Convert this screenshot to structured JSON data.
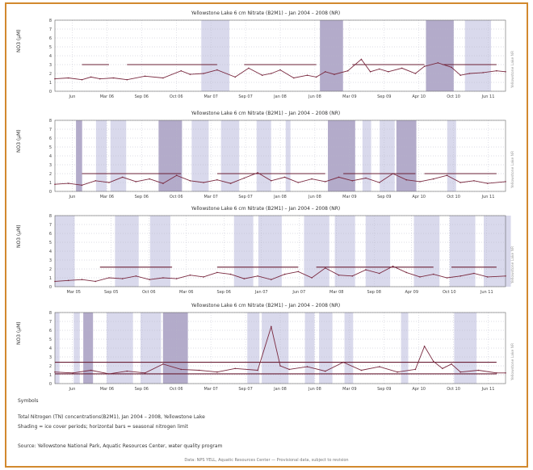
{
  "chart_data": [
    {
      "type": "line",
      "title": "Yellowstone Lake 6 cm Nitrate (B2M1) – Jan 2004 – 2008 (NR)",
      "ylabel": "NO3 (µM)",
      "ylim": [
        0,
        8
      ],
      "yticks": [
        "0",
        "1",
        "2",
        "3",
        "4",
        "5",
        "6",
        "7",
        "8"
      ],
      "xticks": [
        "Jun",
        "Mar 06",
        "Sep 06",
        "Oct 06",
        "Mar 07",
        "Sep 07",
        "Jan 08",
        "Jun 08",
        "Mar 09",
        "Sep 09",
        "Apr 10",
        "Oct 10",
        "Jun 11"
      ],
      "right_label": "Yellowstone Lake NR",
      "limit_segments": [
        [
          0.06,
          0.12,
          3.0
        ],
        [
          0.16,
          0.36,
          3.0
        ],
        [
          0.42,
          0.58,
          3.0
        ],
        [
          0.66,
          0.82,
          3.0
        ],
        [
          0.86,
          0.98,
          3.0
        ]
      ],
      "shade_color": "#c9c9e4",
      "line_color": "#7a2a40",
      "series": [
        {
          "x": [
            0,
            0.03,
            0.06,
            0.08,
            0.1,
            0.13,
            0.16,
            0.2,
            0.24,
            0.28,
            0.3,
            0.33,
            0.36,
            0.4,
            0.43,
            0.46,
            0.48,
            0.5,
            0.53,
            0.56,
            0.58,
            0.6,
            0.62,
            0.65,
            0.68,
            0.7,
            0.72,
            0.74,
            0.77,
            0.8,
            0.82,
            0.85,
            0.88,
            0.9,
            0.92,
            0.95,
            0.98,
            1.0
          ],
          "y": [
            1.4,
            1.5,
            1.3,
            1.6,
            1.4,
            1.5,
            1.3,
            1.7,
            1.5,
            2.3,
            1.9,
            2.0,
            2.4,
            1.6,
            2.6,
            1.8,
            2.0,
            2.4,
            1.5,
            1.8,
            1.6,
            2.2,
            1.9,
            2.3,
            3.6,
            2.2,
            2.5,
            2.2,
            2.6,
            2.0,
            2.8,
            3.2,
            2.7,
            1.8,
            2.0,
            2.1,
            2.3,
            2.2
          ]
        }
      ]
    },
    {
      "type": "line",
      "title": "Yellowstone Lake 6 cm Nitrate (B2M1) – Jan 2004 – 2008 (NR)",
      "ylabel": "NO3 (µM)",
      "ylim": [
        0,
        8
      ],
      "yticks": [
        "0",
        "1",
        "2",
        "3",
        "4",
        "5",
        "6",
        "7",
        "8"
      ],
      "xticks": [
        "Jun",
        "Mar 06",
        "Sep 06",
        "Oct 06",
        "Mar 07",
        "Sep 07",
        "Jan 08",
        "Jun 08",
        "Mar 09",
        "Sep 09",
        "Apr 10",
        "Oct 10",
        "Jun 11"
      ],
      "right_label": "Yellowstone Lake NR",
      "limit_segments": [
        [
          0.06,
          0.28,
          2.0
        ],
        [
          0.36,
          0.6,
          2.0
        ],
        [
          0.64,
          0.8,
          2.0
        ],
        [
          0.82,
          0.98,
          2.0
        ]
      ],
      "shade_color": "#c9c9e4",
      "line_color": "#7a2a40",
      "series": [
        {
          "x": [
            0,
            0.03,
            0.06,
            0.09,
            0.12,
            0.15,
            0.18,
            0.21,
            0.24,
            0.27,
            0.3,
            0.33,
            0.36,
            0.39,
            0.42,
            0.45,
            0.48,
            0.51,
            0.54,
            0.57,
            0.6,
            0.63,
            0.66,
            0.69,
            0.72,
            0.75,
            0.78,
            0.81,
            0.84,
            0.87,
            0.9,
            0.93,
            0.96,
            1.0
          ],
          "y": [
            0.8,
            0.9,
            0.7,
            1.2,
            1.0,
            1.6,
            1.1,
            1.4,
            0.9,
            1.8,
            1.2,
            1.0,
            1.3,
            0.9,
            1.5,
            2.1,
            1.2,
            1.6,
            1.0,
            1.4,
            1.1,
            1.6,
            1.2,
            1.5,
            1.0,
            2.0,
            1.3,
            1.1,
            1.4,
            1.8,
            1.0,
            1.2,
            0.9,
            1.1
          ]
        }
      ]
    },
    {
      "type": "line",
      "title": "Yellowstone Lake 6 cm Nitrate (B2M1) – Jan 2004 – 2008 (NR)",
      "ylabel": "NO3 (µM)",
      "ylim": [
        0,
        8
      ],
      "yticks": [
        "0",
        "1",
        "2",
        "3",
        "4",
        "5",
        "6",
        "7",
        "8"
      ],
      "xticks": [
        "Mar 05",
        "Sep 05",
        "Oct 06",
        "Mar 06",
        "Sep 06",
        "Jan 07",
        "Jun 07",
        "Mar 08",
        "Sep 08",
        "Apr 09",
        "Oct 10",
        "Jun 11"
      ],
      "right_label": "Yellowstone Lake NR",
      "limit_segments": [
        [
          0.1,
          0.26,
          2.2
        ],
        [
          0.36,
          0.54,
          2.2
        ],
        [
          0.58,
          0.84,
          2.2
        ],
        [
          0.88,
          0.98,
          2.2
        ]
      ],
      "shade_color": "#c9c9e4",
      "line_color": "#7a2a40",
      "series": [
        {
          "x": [
            0,
            0.03,
            0.06,
            0.09,
            0.12,
            0.15,
            0.18,
            0.21,
            0.24,
            0.27,
            0.3,
            0.33,
            0.36,
            0.39,
            0.42,
            0.45,
            0.48,
            0.51,
            0.54,
            0.57,
            0.6,
            0.63,
            0.66,
            0.69,
            0.72,
            0.75,
            0.78,
            0.81,
            0.84,
            0.87,
            0.9,
            0.93,
            0.96,
            1.0
          ],
          "y": [
            0.6,
            0.7,
            0.8,
            0.6,
            1.0,
            0.9,
            1.2,
            0.8,
            1.0,
            0.9,
            1.3,
            1.1,
            1.6,
            1.4,
            0.9,
            1.2,
            0.8,
            1.4,
            1.7,
            1.0,
            2.1,
            1.3,
            1.2,
            1.9,
            1.5,
            2.3,
            1.6,
            1.1,
            1.4,
            1.0,
            1.2,
            1.5,
            1.1,
            1.2
          ]
        }
      ]
    },
    {
      "type": "line",
      "title": "Yellowstone Lake 6 cm Nitrate (B2M1) – Jan 2004 – 2008 (NR)",
      "ylabel": "NO3 (µM)",
      "ylim": [
        0,
        8
      ],
      "yticks": [
        "0",
        "1",
        "2",
        "3",
        "4",
        "5",
        "6",
        "7",
        "8"
      ],
      "xticks": [
        "Jun",
        "Mar 06",
        "Sep 06",
        "Oct 06",
        "Mar 07",
        "Sep 07",
        "Jan 08",
        "Jun 08",
        "Mar 09",
        "Sep 09",
        "Apr 10",
        "Oct 10",
        "Jun 11"
      ],
      "right_label": "Yellowstone Lake NR",
      "limit_segments": [
        [
          0.0,
          0.98,
          2.4
        ],
        [
          0.0,
          0.98,
          1.1
        ]
      ],
      "shade_color": "#c9c9e4",
      "line_color": "#7a2a40",
      "series": [
        {
          "x": [
            0,
            0.04,
            0.08,
            0.12,
            0.16,
            0.2,
            0.24,
            0.28,
            0.32,
            0.36,
            0.4,
            0.45,
            0.48,
            0.5,
            0.52,
            0.56,
            0.6,
            0.64,
            0.68,
            0.72,
            0.76,
            0.8,
            0.82,
            0.84,
            0.86,
            0.88,
            0.9,
            0.94,
            0.98,
            1.0
          ],
          "y": [
            1.3,
            1.2,
            1.5,
            1.1,
            1.4,
            1.2,
            2.2,
            1.6,
            1.5,
            1.3,
            1.7,
            1.5,
            6.4,
            2.0,
            1.6,
            1.9,
            1.4,
            2.4,
            1.5,
            1.9,
            1.3,
            1.6,
            4.2,
            2.5,
            1.7,
            2.2,
            1.3,
            1.5,
            1.2,
            1.2
          ]
        }
      ]
    }
  ],
  "footer": {
    "left_label": "Symbols",
    "line1": "Total Nitrogen (TN) concentrations(B2M1), Jan 2004 – 2008, Yellowstone Lake",
    "line2": "Shading = ice cover periods; horizontal bars = seasonal nitrogen limit",
    "line3": "Source: Yellowstone National Park, Aquatic Resources Center, water quality program",
    "credit": "Data: NPS YELL, Aquatic Resources Center — Provisional data, subject to revision"
  }
}
